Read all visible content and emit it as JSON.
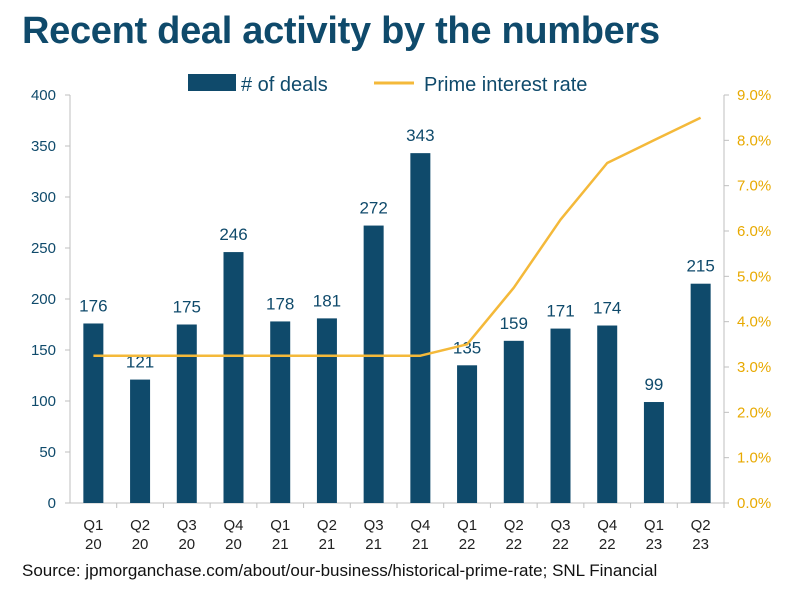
{
  "title": "Recent deal activity by the numbers",
  "source": "Source: jpmorganchase.com/about/our-business/historical-prime-rate; SNL Financial",
  "colors": {
    "bars": "#0f4a6b",
    "line": "#f4b93a",
    "right_axis": "#e8a900",
    "text": "#0f4a6b",
    "axis": "#bfbfbf"
  },
  "chart_data": {
    "type": "bar",
    "title": "Recent deal activity by the numbers",
    "categories": [
      [
        "Q1",
        "20"
      ],
      [
        "Q2",
        "20"
      ],
      [
        "Q3",
        "20"
      ],
      [
        "Q4",
        "20"
      ],
      [
        "Q1",
        "21"
      ],
      [
        "Q2",
        "21"
      ],
      [
        "Q3",
        "21"
      ],
      [
        "Q4",
        "21"
      ],
      [
        "Q1",
        "22"
      ],
      [
        "Q2",
        "22"
      ],
      [
        "Q3",
        "22"
      ],
      [
        "Q4",
        "22"
      ],
      [
        "Q1",
        "23"
      ],
      [
        "Q2",
        "23"
      ]
    ],
    "series": [
      {
        "name": "# of deals",
        "type": "bar",
        "axis": "left",
        "values": [
          176,
          121,
          175,
          246,
          178,
          181,
          272,
          343,
          135,
          159,
          171,
          174,
          99,
          215
        ],
        "data_labels": true
      },
      {
        "name": "Prime interest rate",
        "type": "line",
        "axis": "right",
        "values": [
          3.25,
          3.25,
          3.25,
          3.25,
          3.25,
          3.25,
          3.25,
          3.25,
          3.5,
          4.75,
          6.25,
          7.5,
          8.0,
          8.5
        ]
      }
    ],
    "y_left": {
      "min": 0,
      "max": 400,
      "ticks": [
        "0",
        "50",
        "100",
        "150",
        "200",
        "250",
        "300",
        "350",
        "400"
      ]
    },
    "y_right": {
      "min": 0,
      "max": 9,
      "ticks": [
        "0.0%",
        "1.0%",
        "2.0%",
        "3.0%",
        "4.0%",
        "5.0%",
        "6.0%",
        "7.0%",
        "8.0%",
        "9.0%"
      ]
    },
    "legend": "top",
    "grid": false
  }
}
